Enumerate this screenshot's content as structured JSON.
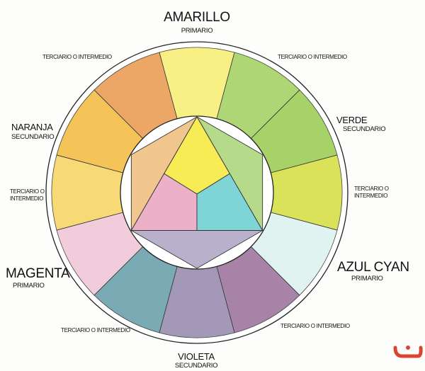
{
  "labels": {
    "amarillo": {
      "name": "AMARILLO",
      "type": "PRIMARIO"
    },
    "verde": {
      "name": "VERDE",
      "type": "SECUNDARIO"
    },
    "azul_cyan": {
      "name": "AZUL CYAN",
      "type": "PRIMARIO"
    },
    "violeta": {
      "name": "VIOLETA",
      "type": "SECUNDARIO"
    },
    "magenta": {
      "name": "MAGENTA",
      "type": "PRIMARIO"
    },
    "naranja": {
      "name": "NARANJA",
      "type": "SECUNDARIO"
    },
    "tertiary_top_left": "TERCIARIO O INTERMEDIO",
    "tertiary_top_right": "TERCIARIO O INTERMEDIO",
    "tertiary_right_1": "TERCIARIO O",
    "tertiary_right_2": "INTERMEDIO",
    "tertiary_left_1": "TERCIARIO O",
    "tertiary_left_2": "INTERMEDIO",
    "tertiary_bottom_left": "TERCIARIO O INTERMEDIO",
    "tertiary_bottom_right": "TERCIARIO O INTERMEDIO"
  },
  "wheel_segments_clockwise_from_top": [
    "#f8ef7a",
    "#a9d36a",
    "#9fcf5c",
    "#d6e04a",
    "#def3f0",
    "#a07aa0",
    "#9c90b2",
    "#6fa3ad",
    "#f0c8d8",
    "#f7d76a",
    "#f5c04a",
    "#eba05a"
  ],
  "inner_shapes": {
    "yellow": "#f7ec56",
    "magenta": "#ecb0c8",
    "cyan": "#7fd4d6",
    "orange": "#f1c58e",
    "green": "#b5db8a",
    "violet": "#b9b1cc"
  },
  "logo_color": "#d9452e"
}
